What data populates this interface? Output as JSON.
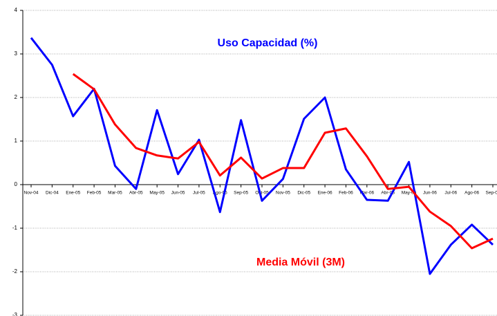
{
  "chart_data": {
    "type": "line",
    "categories": [
      "Nov-04",
      "Dic-04",
      "Ene-05",
      "Feb-05",
      "Mar-05",
      "Abr-05",
      "May-05",
      "Jun-05",
      "Jul-05",
      "Ago-05",
      "Sep-05",
      "Oct-05",
      "Nov-05",
      "Dic-05",
      "Ene-06",
      "Feb-06",
      "Mar-06",
      "Abr-06",
      "May-06",
      "Jun-06",
      "Jul-06",
      "Ago-06",
      "Sep-06"
    ],
    "series": [
      {
        "name": "Uso Capacidad (%)",
        "color": "#0000ff",
        "values": [
          3.37,
          2.75,
          1.57,
          2.2,
          0.43,
          -0.1,
          1.71,
          0.24,
          1.03,
          -0.63,
          1.48,
          -0.37,
          0.13,
          1.51,
          2.0,
          0.35,
          -0.35,
          -0.37,
          0.52,
          -2.05,
          -1.38,
          -0.92,
          -1.38
        ]
      },
      {
        "name": "Media Móvil (3M)",
        "color": "#ff0000",
        "values": [
          null,
          null,
          2.54,
          2.19,
          1.38,
          0.84,
          0.67,
          0.6,
          0.98,
          0.21,
          0.62,
          0.14,
          0.38,
          0.38,
          1.19,
          1.29,
          0.65,
          -0.1,
          -0.05,
          -0.62,
          -0.95,
          -1.46,
          -1.24
        ]
      }
    ],
    "ylim": [
      -3,
      4
    ],
    "yticks": [
      -3,
      -2,
      -1,
      0,
      1,
      2,
      3,
      4
    ],
    "grid": true
  }
}
